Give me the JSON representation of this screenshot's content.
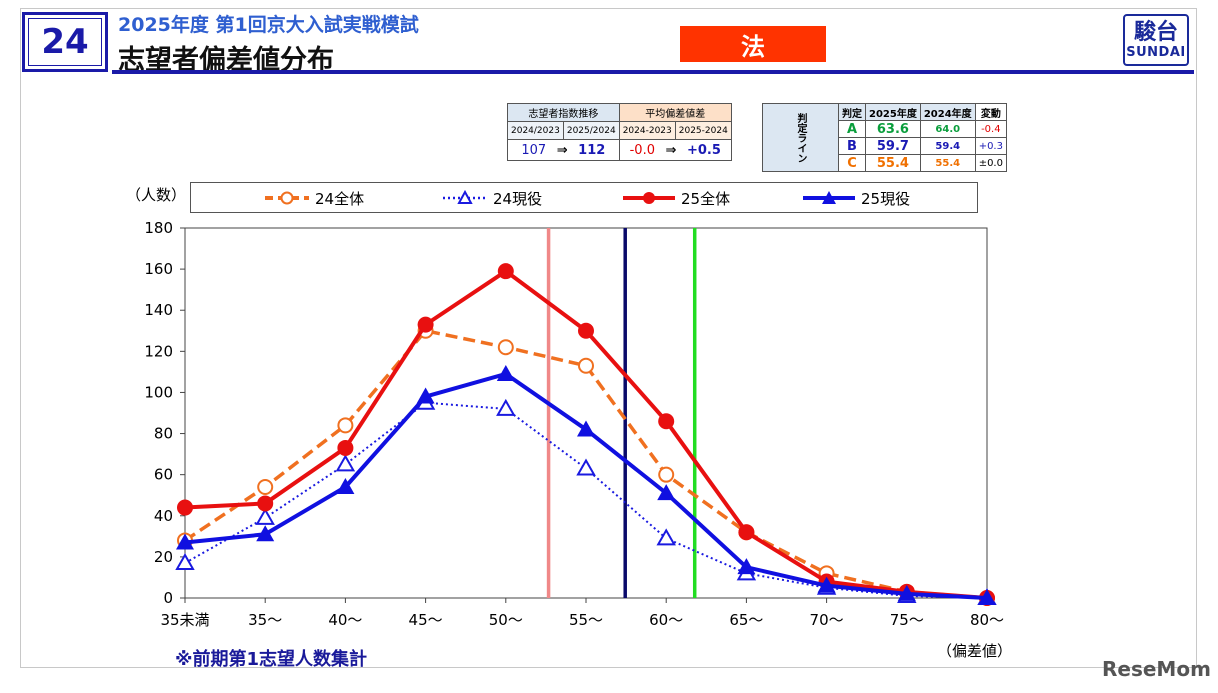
{
  "header": {
    "number": "24",
    "subtitle": "2025年度 第1回京大入試実戦模試",
    "title": "志望者偏差値分布",
    "subject": "法",
    "logo_kanji": "駿台",
    "logo_text": "SUNDAI"
  },
  "index_table": {
    "group1_label": "志望者指数推移",
    "group2_label": "平均偏差値差",
    "cols": [
      "2024/2023",
      "2025/2024",
      "2024-2023",
      "2025-2024"
    ],
    "index_2024_2023": "107",
    "index_2025_2024": "112",
    "diff_2024_2023": "-0.0",
    "diff_2025_2024": "+0.5",
    "arrow": "⇒"
  },
  "judge_table": {
    "side_label": "判定ライン",
    "headers": [
      "判定",
      "2025年度",
      "2024年度",
      "変動"
    ],
    "rows": [
      {
        "grade": "A",
        "y2025": "63.6",
        "y2024": "64.0",
        "change": "-0.4",
        "color": "#0a9e3c",
        "change_color": "#e00000"
      },
      {
        "grade": "B",
        "y2025": "59.7",
        "y2024": "59.4",
        "change": "+0.3",
        "color": "#1a1ab4",
        "change_color": "#1a1ab4"
      },
      {
        "grade": "C",
        "y2025": "55.4",
        "y2024": "55.4",
        "change": "±0.0",
        "color": "#f07000",
        "change_color": "#000000"
      }
    ]
  },
  "axis": {
    "y_unit": "（人数）",
    "x_unit": "（偏差値）"
  },
  "note": "※前期第1志望人数集計",
  "watermark": "ReseMom",
  "chart_data": {
    "type": "line",
    "categories": [
      "35未満",
      "35〜",
      "40〜",
      "45〜",
      "50〜",
      "55〜",
      "60〜",
      "65〜",
      "70〜",
      "75〜",
      "80〜"
    ],
    "ylim": [
      0,
      180
    ],
    "yticks": [
      0,
      20,
      40,
      60,
      80,
      100,
      120,
      140,
      160,
      180
    ],
    "grid": false,
    "legend_position": "top",
    "series": [
      {
        "name": "24全体",
        "color": "#f07020",
        "dash": "dashed",
        "marker": "circle-open",
        "values": [
          28,
          54,
          84,
          130,
          122,
          113,
          60,
          32,
          12,
          3,
          0
        ]
      },
      {
        "name": "24現役",
        "color": "#1a1ae0",
        "dash": "dotted",
        "marker": "triangle-open",
        "values": [
          17,
          39,
          65,
          95,
          92,
          63,
          29,
          12,
          5,
          1,
          0
        ]
      },
      {
        "name": "25全体",
        "color": "#e81010",
        "dash": "solid",
        "marker": "circle-filled",
        "values": [
          44,
          46,
          73,
          133,
          159,
          130,
          86,
          32,
          8,
          3,
          0
        ]
      },
      {
        "name": "25現役",
        "color": "#1010e0",
        "dash": "solid",
        "marker": "triangle-filled",
        "values": [
          27,
          31,
          54,
          98,
          109,
          82,
          51,
          15,
          6,
          2,
          0
        ]
      }
    ],
    "reference_lines": [
      {
        "grade": "C",
        "x": 55.4,
        "color": "#f08888"
      },
      {
        "grade": "B",
        "x": 59.7,
        "color": "#0a0a6a"
      },
      {
        "grade": "A",
        "x": 63.6,
        "color": "#22dd22"
      }
    ]
  }
}
